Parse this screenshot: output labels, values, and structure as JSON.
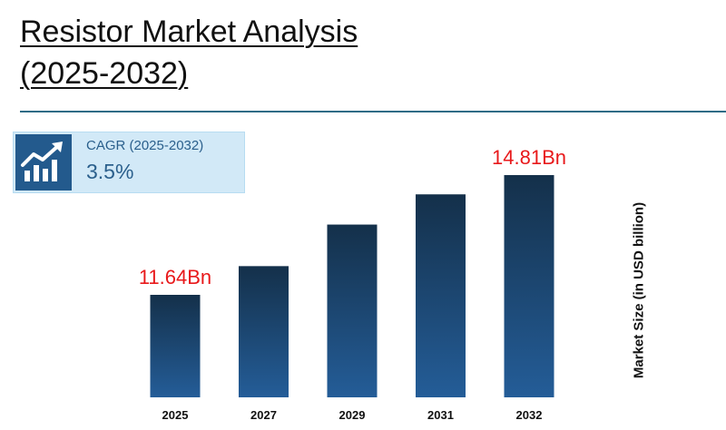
{
  "title": {
    "line1": "Resistor Market Analysis",
    "line2": "(2025-2032)"
  },
  "cagr": {
    "label": "CAGR (2025-2032)",
    "value": "3.5%",
    "icon": "growth-chart-icon"
  },
  "colors": {
    "bar_top": "#14304a",
    "bar_bottom": "#245d98",
    "label": "#e8191b",
    "accent": "#2f6b86",
    "cagr_bg": "#d2e9f7",
    "icon_bg": "#235a8d"
  },
  "chart_data": {
    "type": "bar",
    "categories": [
      "2025",
      "2027",
      "2029",
      "2031",
      "2032"
    ],
    "values": [
      11.64,
      12.4,
      13.5,
      14.3,
      14.81
    ],
    "data_labels": [
      "11.64Bn",
      "",
      "",
      "",
      "14.81Bn"
    ],
    "ylabel": "Market Size (in USD billion)",
    "xlabel": "",
    "grid": false,
    "legend": "none"
  }
}
